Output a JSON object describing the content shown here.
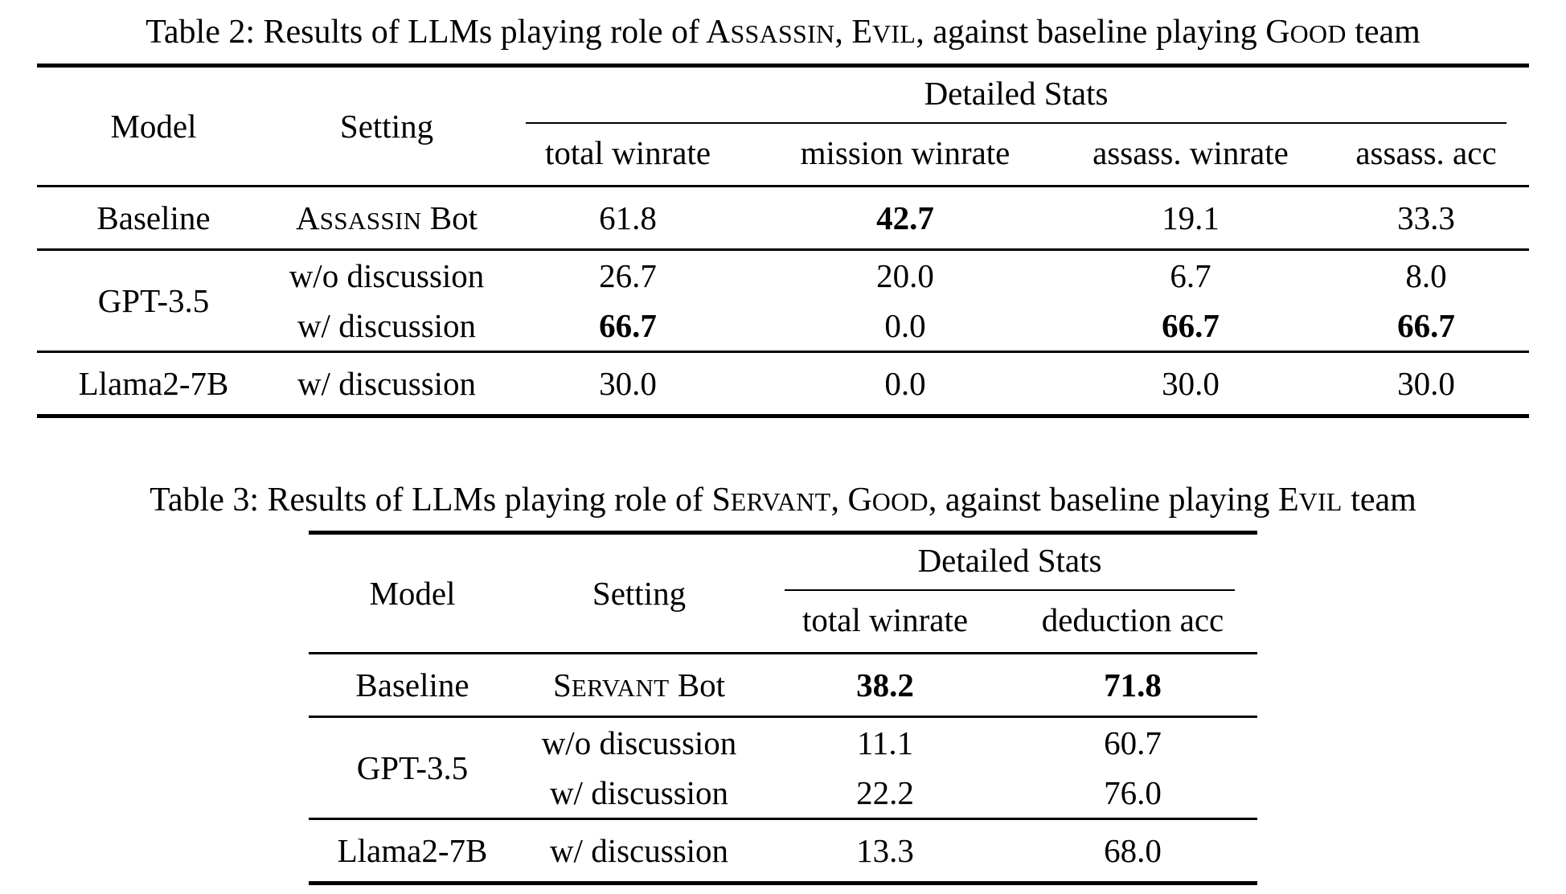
{
  "table2": {
    "caption": [
      {
        "t": "Table 2: Results of LLMs playing role of "
      },
      {
        "t": "Assassin",
        "sc": true
      },
      {
        "t": ", "
      },
      {
        "t": "Evil",
        "sc": true
      },
      {
        "t": ", against baseline playing "
      },
      {
        "t": "Good",
        "sc": true
      },
      {
        "t": " team"
      }
    ],
    "header": {
      "model": "Model",
      "setting": "Setting",
      "group": "Detailed Stats",
      "stats": [
        "total winrate",
        "mission winrate",
        "assass. winrate",
        "assass. acc"
      ]
    },
    "rows": {
      "baseline": {
        "model": "Baseline",
        "setting": [
          {
            "t": "Assassin",
            "sc": true
          },
          {
            "t": " Bot"
          }
        ],
        "values": [
          "61.8",
          "42.7",
          "19.1",
          "33.3"
        ]
      },
      "gpt": {
        "model": "GPT-3.5",
        "wo": {
          "setting": "w/o discussion",
          "values": [
            "26.7",
            "20.0",
            "6.7",
            "8.0"
          ]
        },
        "w": {
          "setting": "w/ discussion",
          "values": [
            "66.7",
            "0.0",
            "66.7",
            "66.7"
          ]
        }
      },
      "llama": {
        "model": "Llama2-7B",
        "setting": "w/ discussion",
        "values": [
          "30.0",
          "0.0",
          "30.0",
          "30.0"
        ]
      }
    }
  },
  "table3": {
    "caption": [
      {
        "t": "Table 3: Results of LLMs playing role of "
      },
      {
        "t": "Servant",
        "sc": true
      },
      {
        "t": ", "
      },
      {
        "t": "Good",
        "sc": true
      },
      {
        "t": ", against baseline playing "
      },
      {
        "t": "Evil",
        "sc": true
      },
      {
        "t": " team"
      }
    ],
    "header": {
      "model": "Model",
      "setting": "Setting",
      "group": "Detailed Stats",
      "stats": [
        "total winrate",
        "deduction acc"
      ]
    },
    "rows": {
      "baseline": {
        "model": "Baseline",
        "setting": [
          {
            "t": "Servant",
            "sc": true
          },
          {
            "t": " Bot"
          }
        ],
        "values": [
          "38.2",
          "71.8"
        ]
      },
      "gpt": {
        "model": "GPT-3.5",
        "wo": {
          "setting": "w/o discussion",
          "values": [
            "11.1",
            "60.7"
          ]
        },
        "w": {
          "setting": "w/ discussion",
          "values": [
            "22.2",
            "76.0"
          ]
        }
      },
      "llama": {
        "model": "Llama2-7B",
        "setting": "w/ discussion",
        "values": [
          "13.3",
          "68.0"
        ]
      }
    }
  }
}
